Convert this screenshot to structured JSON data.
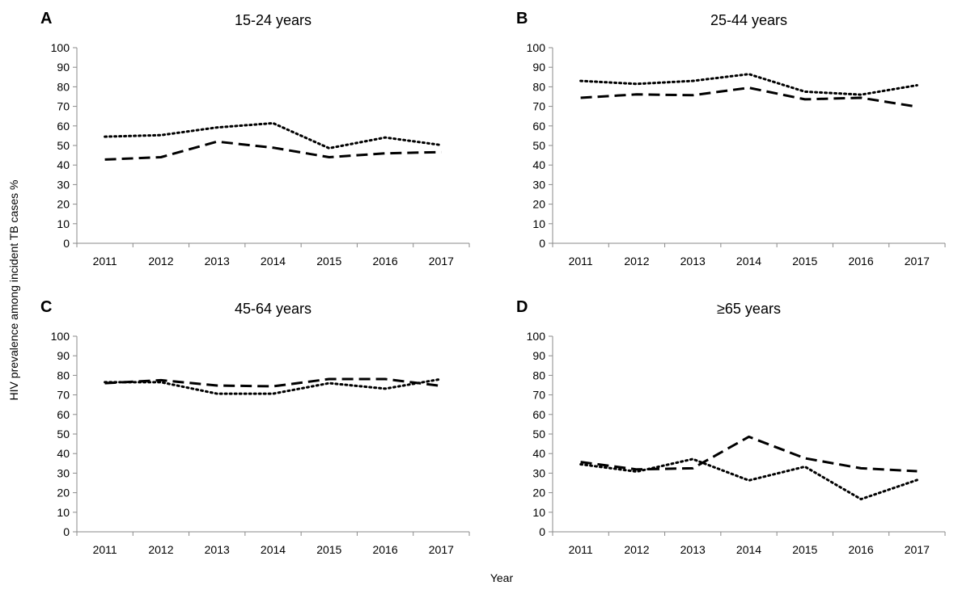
{
  "chart_data": [
    {
      "type": "line",
      "panel_letter": "A",
      "title": "15-24 years",
      "categories": [
        "2011",
        "2012",
        "2013",
        "2014",
        "2015",
        "2016",
        "2017"
      ],
      "series": [
        {
          "style": "dotted",
          "values": [
            54.5,
            55.3,
            59.2,
            61.4,
            48.6,
            54.1,
            50.2
          ]
        },
        {
          "style": "dashed",
          "values": [
            42.8,
            44.0,
            52.0,
            48.9,
            44.0,
            46.0,
            46.6
          ]
        }
      ],
      "ylim": [
        0,
        100
      ],
      "yticks": [
        0,
        10,
        20,
        30,
        40,
        50,
        60,
        70,
        80,
        90,
        100
      ]
    },
    {
      "type": "line",
      "panel_letter": "B",
      "title": "25-44 years",
      "categories": [
        "2011",
        "2012",
        "2013",
        "2014",
        "2015",
        "2016",
        "2017"
      ],
      "series": [
        {
          "style": "dotted",
          "values": [
            83.0,
            81.5,
            83.0,
            86.5,
            77.5,
            76.0,
            80.8
          ]
        },
        {
          "style": "dashed",
          "values": [
            74.4,
            76.1,
            75.7,
            79.5,
            73.6,
            74.4,
            69.8
          ]
        }
      ],
      "ylim": [
        0,
        100
      ],
      "yticks": [
        0,
        10,
        20,
        30,
        40,
        50,
        60,
        70,
        80,
        90,
        100
      ]
    },
    {
      "type": "line",
      "panel_letter": "C",
      "title": "45-64 years",
      "categories": [
        "2011",
        "2012",
        "2013",
        "2014",
        "2015",
        "2016",
        "2017"
      ],
      "series": [
        {
          "style": "dotted",
          "values": [
            76.5,
            76.5,
            70.6,
            70.6,
            76.0,
            73.2,
            78.1
          ]
        },
        {
          "style": "dashed",
          "values": [
            76.0,
            77.5,
            74.8,
            74.4,
            78.1,
            78.1,
            74.6
          ]
        }
      ],
      "ylim": [
        0,
        100
      ],
      "yticks": [
        0,
        10,
        20,
        30,
        40,
        50,
        60,
        70,
        80,
        90,
        100
      ]
    },
    {
      "type": "line",
      "panel_letter": "D",
      "title": "≥65 years",
      "categories": [
        "2011",
        "2012",
        "2013",
        "2014",
        "2015",
        "2016",
        "2017"
      ],
      "series": [
        {
          "style": "dotted",
          "values": [
            34.5,
            30.8,
            37.2,
            26.3,
            33.3,
            16.7,
            26.5
          ]
        },
        {
          "style": "dashed",
          "values": [
            35.7,
            31.9,
            32.5,
            48.6,
            37.6,
            32.5,
            31.0
          ]
        }
      ],
      "ylim": [
        0,
        100
      ],
      "yticks": [
        0,
        10,
        20,
        30,
        40,
        50,
        60,
        70,
        80,
        90,
        100
      ]
    }
  ],
  "ylabel": "HIV prevalence  among incident TB cases  %",
  "xlabel": "Year"
}
